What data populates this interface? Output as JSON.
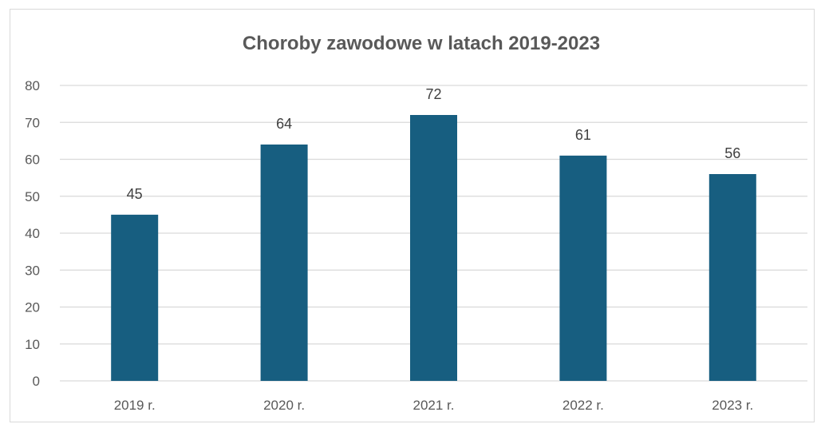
{
  "chart_data": {
    "type": "bar",
    "title": "Choroby zawodowe w latach 2019-2023",
    "categories": [
      "2019 r.",
      "2020 r.",
      "2021 r.",
      "2022 r.",
      "2023 r."
    ],
    "values": [
      45,
      64,
      72,
      61,
      56
    ],
    "ylim": [
      0,
      80
    ],
    "yticks": [
      0,
      10,
      20,
      30,
      40,
      50,
      60,
      70,
      80
    ],
    "xlabel": "",
    "ylabel": "",
    "grid": true,
    "legend": "none",
    "data_labels": true,
    "bar_color": "#175E80",
    "grid_color": "#d9d9d9",
    "text_color": "#595959"
  }
}
